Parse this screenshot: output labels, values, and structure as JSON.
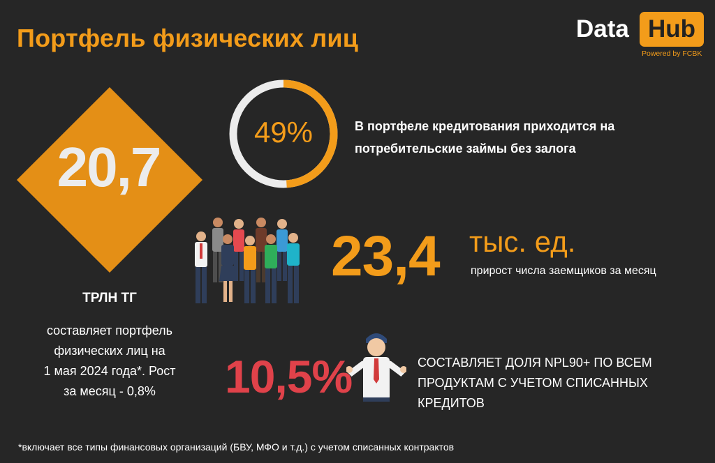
{
  "header": {
    "title": "Портфель физических лиц"
  },
  "logo": {
    "text_left": "Data",
    "text_right": "Hub",
    "tagline": "Powered by FCBK"
  },
  "portfolio": {
    "value": "20,7",
    "unit": "ТРЛН ТГ",
    "description_lines": [
      "составляет портфель",
      "физических лиц на",
      "1 мая 2024 года*. Рост",
      "за месяц - 0,8%"
    ]
  },
  "consumer_share": {
    "percent_label": "49%",
    "percent_value": 49,
    "text_lines": [
      "В портфеле кредитования приходится на",
      "потребительские займы без залога"
    ]
  },
  "borrowers": {
    "value": "23,4",
    "unit": "тыс. ед.",
    "label": "прирост числа заемщиков за месяц"
  },
  "npl": {
    "value": "10,5%",
    "text_lines": [
      "СОСТАВЛЯЕТ ДОЛЯ NPL90+ ПО ВСЕМ",
      "ПРОДУКТАМ С УЧЕТОМ СПИСАННЫХ",
      "КРЕДИТОВ"
    ]
  },
  "footnote": "*включает все типы финансовых организаций (БВУ, МФО и т.д.) с учетом списанных контрактов",
  "colors": {
    "background": "#262626",
    "accent": "#f39c1a",
    "npl_red": "#e0424a",
    "ring_track": "#ececec"
  }
}
